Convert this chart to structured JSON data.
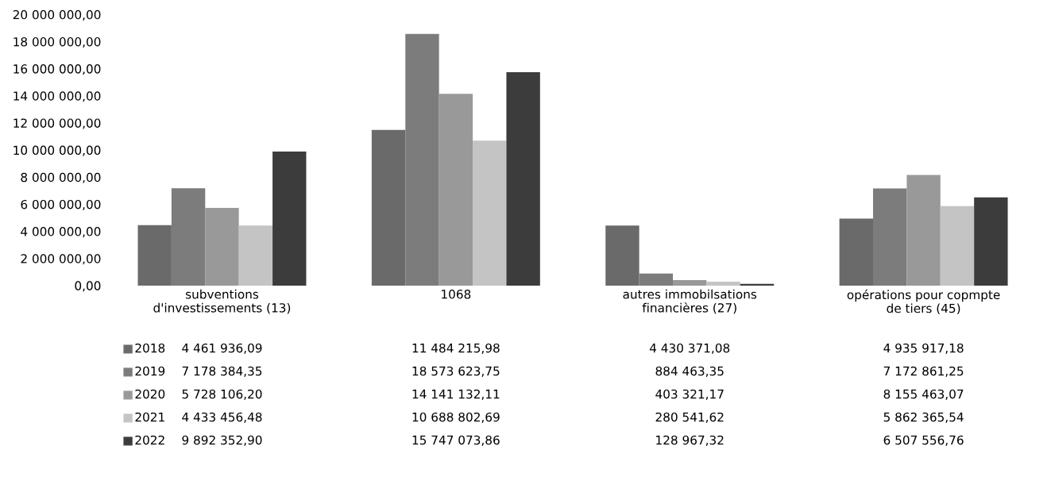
{
  "chart_data": {
    "type": "bar",
    "categories": [
      "subventions\nd'investissements (13)",
      "1068",
      "autres immobilsations\nfinancières (27)",
      "opérations pour copmpte\nde tiers (45)"
    ],
    "series": [
      {
        "name": "2018",
        "color": "#6a6a6a",
        "values": [
          4461936.09,
          11484215.98,
          4430371.08,
          4935917.18
        ],
        "value_labels": [
          "4 461 936,09",
          "11 484 215,98",
          "4 430 371,08",
          "4 935 917,18"
        ]
      },
      {
        "name": "2019",
        "color": "#7c7c7c",
        "values": [
          7178384.35,
          18573623.75,
          884463.35,
          7172861.25
        ],
        "value_labels": [
          "7 178 384,35",
          "18 573 623,75",
          "884 463,35",
          "7 172 861,25"
        ]
      },
      {
        "name": "2020",
        "color": "#999999",
        "values": [
          5728106.2,
          14141132.11,
          403321.17,
          8155463.07
        ],
        "value_labels": [
          "5 728 106,20",
          "14 141 132,11",
          "403 321,17",
          "8 155 463,07"
        ]
      },
      {
        "name": "2021",
        "color": "#c4c4c4",
        "values": [
          4433456.48,
          10688802.69,
          280541.62,
          5862365.54
        ],
        "value_labels": [
          "4 433 456,48",
          "10 688 802,69",
          "280 541,62",
          "5 862 365,54"
        ]
      },
      {
        "name": "2022",
        "color": "#3c3c3c",
        "values": [
          9892352.9,
          15747073.86,
          128967.32,
          6507556.76
        ],
        "value_labels": [
          "9 892 352,90",
          "15 747 073,86",
          "128 967,32",
          "6 507 556,76"
        ]
      }
    ],
    "ylim": [
      0,
      20000000
    ],
    "yticks": [
      {
        "value": 0,
        "label": "0,00"
      },
      {
        "value": 2000000,
        "label": "2 000 000,00"
      },
      {
        "value": 4000000,
        "label": "4 000 000,00"
      },
      {
        "value": 6000000,
        "label": "6 000 000,00"
      },
      {
        "value": 8000000,
        "label": "8 000 000,00"
      },
      {
        "value": 10000000,
        "label": "10 000 000,00"
      },
      {
        "value": 12000000,
        "label": "12 000 000,00"
      },
      {
        "value": 14000000,
        "label": "14 000 000,00"
      },
      {
        "value": 16000000,
        "label": "16 000 000,00"
      },
      {
        "value": 18000000,
        "label": "18 000 000,00"
      },
      {
        "value": 20000000,
        "label": "20 000 000,00"
      }
    ],
    "grid": false,
    "legend": "bottom"
  }
}
